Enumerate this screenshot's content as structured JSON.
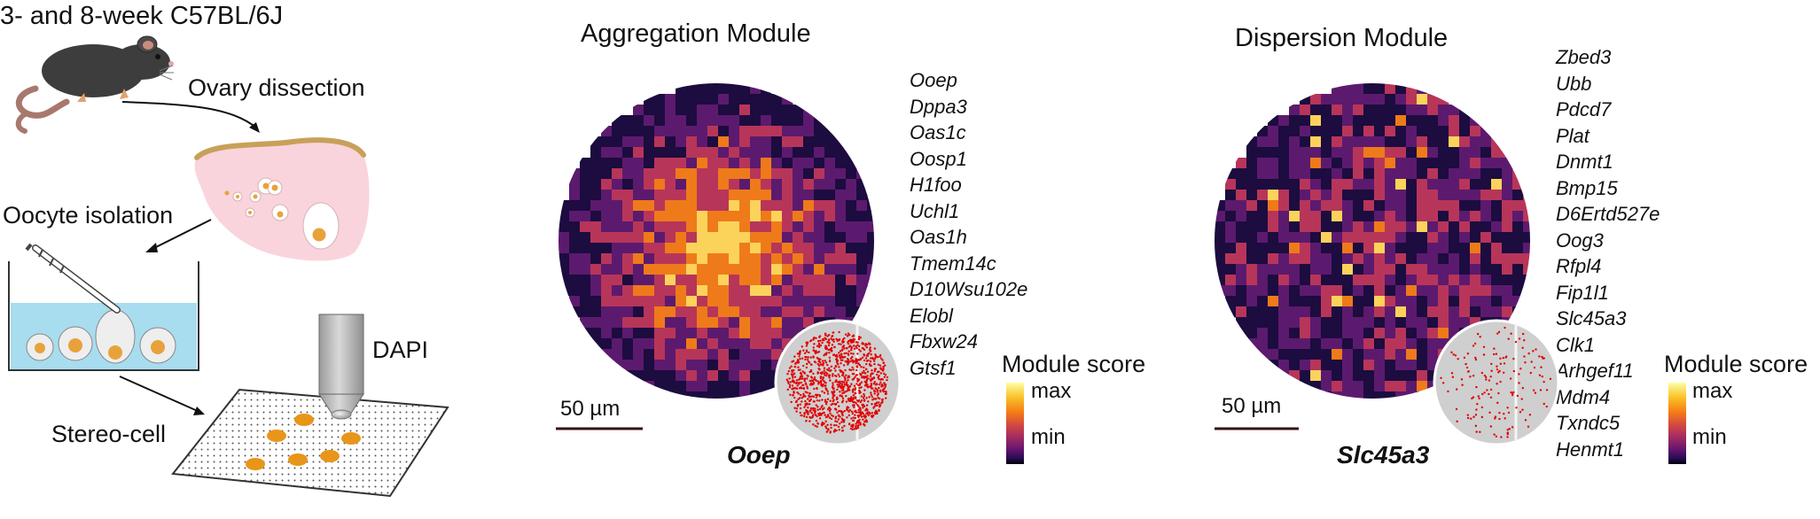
{
  "workflow": {
    "title": "3- and 8-week C57BL/6J",
    "steps": [
      "Ovary dissection",
      "Oocyte isolation",
      "Stereo-cell"
    ],
    "stain": "DAPI"
  },
  "panels": [
    {
      "title": "Aggregation Module",
      "genes": [
        "Ooep",
        "Dppa3",
        "Oas1c",
        "Oosp1",
        "H1foo",
        "Uchl1",
        "Oas1h",
        "Tmem14c",
        "D10Wsu102e",
        "Elobl",
        "Fbxw24",
        "Gtsf1"
      ],
      "inset_gene": "Ooep",
      "scale_bar": "50 µm",
      "colorbar": {
        "title": "Module score",
        "max": "max",
        "min": "min"
      },
      "pattern": "aggregated-center",
      "dot_density": "high"
    },
    {
      "title": "Dispersion Module",
      "genes": [
        "Zbed3",
        "Ubb",
        "Pdcd7",
        "Plat",
        "Dnmt1",
        "Bmp15",
        "D6Ertd527e",
        "Oog3",
        "Rfpl4",
        "Fip1l1",
        "Slc45a3",
        "Clk1",
        "Arhgef11",
        "Mdm4",
        "Txndc5",
        "Henmt1"
      ],
      "inset_gene": "Slc45a3",
      "scale_bar": "50 µm",
      "colorbar": {
        "title": "Module score",
        "max": "max",
        "min": "min"
      },
      "pattern": "dispersed",
      "dot_density": "low"
    }
  ],
  "colors": {
    "inferno_dark": "#1c0c3f",
    "inferno_purple": "#5c1a6e",
    "inferno_red": "#b8355a",
    "inferno_orange": "#ef7a1a",
    "inferno_yellow": "#fbd35a",
    "dot": "#e00000",
    "ovary": "#f9d4dc",
    "dish": "#a8dcef",
    "oocyte": "#e8a23a"
  }
}
